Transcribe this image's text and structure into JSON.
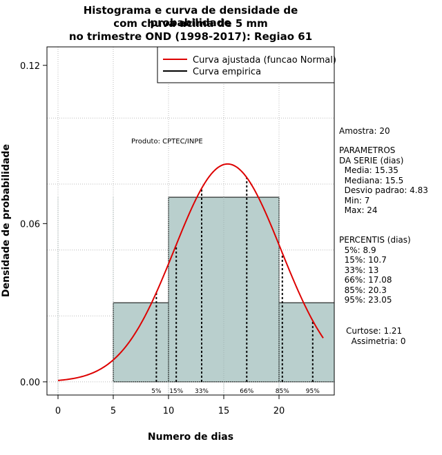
{
  "chart_data": {
    "type": "bar",
    "title": "Histograma e curva de densidade de probabilidade",
    "title_line2": "com chuva acima de 5 mm",
    "title_line3": "no trimestre OND (1998-2017): Regiao 61",
    "xlabel": "Numero de dias",
    "ylabel": "Densidade de probabilidade",
    "xlim": [
      -1,
      25
    ],
    "ylim": [
      -0.005,
      0.127
    ],
    "xticks": [
      0,
      5,
      10,
      15,
      20
    ],
    "xtick_labels": [
      "0",
      "5",
      "10",
      "15",
      "20"
    ],
    "yticks": [
      0.0,
      0.06,
      0.12
    ],
    "ytick_labels": [
      "0.00",
      "0.06",
      "0.12"
    ],
    "grid": true,
    "histogram": {
      "name": "Curva empirica",
      "bins": [
        {
          "from": 5,
          "to": 10,
          "density": 0.03
        },
        {
          "from": 10,
          "to": 20,
          "density": 0.07
        },
        {
          "from": 20,
          "to": 25,
          "density": 0.03
        }
      ],
      "fill_color": "#b9cfcd",
      "edge_color": "#000000"
    },
    "normal_curve": {
      "name": "Curva ajustada (funcao Normal)",
      "mean": 15.35,
      "sd": 4.83,
      "x_range": [
        0,
        24
      ],
      "color": "#dd0000"
    },
    "percentiles": [
      {
        "label": "5%",
        "x": 8.9
      },
      {
        "label": "15%",
        "x": 10.7
      },
      {
        "label": "33%",
        "x": 13
      },
      {
        "label": "66%",
        "x": 17.08
      },
      {
        "label": "85%",
        "x": 20.3
      },
      {
        "label": "95%",
        "x": 23.05
      }
    ],
    "legend": {
      "placement": "top-right",
      "entries": [
        {
          "label": "Curva ajustada (funcao Normal)",
          "color": "#dd0000"
        },
        {
          "label": "Curva empirica",
          "color": "#000000"
        }
      ]
    },
    "annotation": "Produto: CPTEC/INPE"
  },
  "side_panel": {
    "amostra": "Amostra: 20",
    "parametros": "PARAMETROS\nDA SERIE (dias)\n  Media: 15.35\n  Mediana: 15.5\n  Desvio padrao: 4.83\n  Min: 7\n  Max: 24",
    "percentis": "PERCENTIS (dias)\n  5%: 8.9\n  15%: 10.7\n  33%: 13\n  66%: 17.08\n  85%: 20.3\n  95%: 23.05",
    "curtose": "Curtose: 1.21\n  Assimetria: 0"
  }
}
